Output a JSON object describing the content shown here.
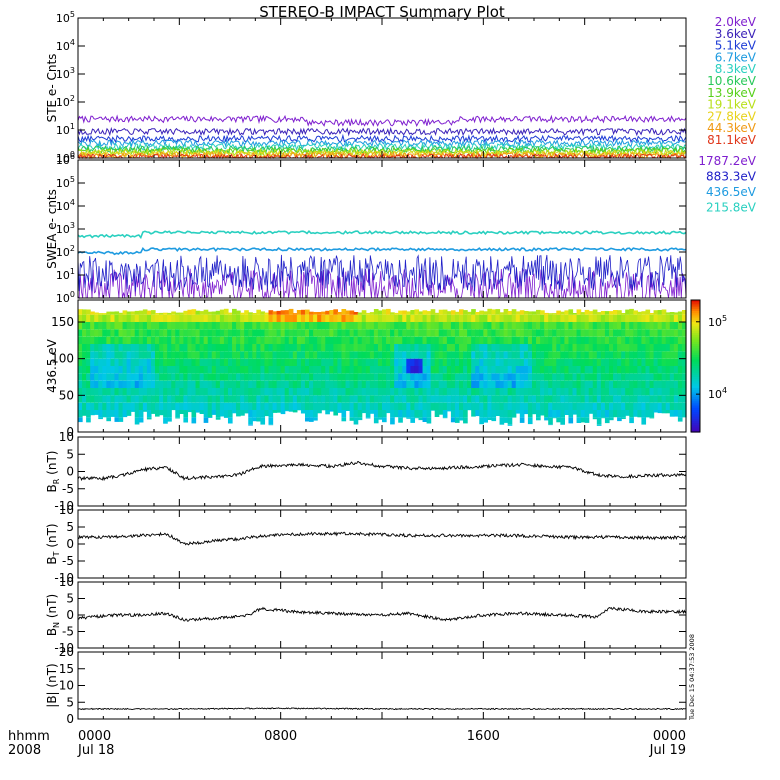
{
  "title": "STEREO-B IMPACT Summary Plot",
  "footer": {
    "time_label": "hhmm",
    "year_label": "2008",
    "ticks": [
      "0000",
      "0800",
      "1600",
      "0000"
    ],
    "start_date": "Jul 18",
    "end_date": "Jul 19"
  },
  "stamp": "Tue Dec 15 04:37:53 2008",
  "colors": {
    "frame": "#000000",
    "background": "#ffffff"
  },
  "chart_data": [
    {
      "type": "line",
      "panel": "ste",
      "ylabel": "STE e- Cnts",
      "yscale": "log",
      "ylim": [
        1,
        100000
      ],
      "y_ticks": [
        1,
        10,
        100,
        1000,
        10000,
        100000
      ],
      "y_tick_labels": [
        "10^0",
        "10^1",
        "10^2",
        "10^3",
        "10^4",
        "10^5"
      ],
      "x_ticks": [
        "0000",
        "0800",
        "1600",
        "0000"
      ],
      "x_range_hours": [
        0,
        24
      ],
      "series": [
        {
          "name": "2.0keV",
          "color": "#7f1fcf",
          "level": 25
        },
        {
          "name": "3.6keV",
          "color": "#3b22b8",
          "level": 9
        },
        {
          "name": "5.1keV",
          "color": "#1e3cd6",
          "level": 5
        },
        {
          "name": "6.7keV",
          "color": "#1e9be0",
          "level": 3.5
        },
        {
          "name": "8.3keV",
          "color": "#2ad0c0",
          "level": 2.6
        },
        {
          "name": "10.6keV",
          "color": "#28c85a",
          "level": 2.1
        },
        {
          "name": "13.9keV",
          "color": "#58d01c",
          "level": 1.8
        },
        {
          "name": "19.1keV",
          "color": "#b8e01a",
          "level": 1.6
        },
        {
          "name": "27.8keV",
          "color": "#e8d21a",
          "level": 1.4
        },
        {
          "name": "44.3keV",
          "color": "#f09a14",
          "level": 1.25
        },
        {
          "name": "81.1keV",
          "color": "#e0361a",
          "level": 1.1
        }
      ]
    },
    {
      "type": "line",
      "panel": "swea",
      "ylabel": "SWEA e- cnts",
      "yscale": "log",
      "ylim": [
        1,
        1000000
      ],
      "y_ticks": [
        1,
        10,
        100,
        1000,
        10000,
        100000,
        1000000
      ],
      "y_tick_labels": [
        "10^0",
        "10^1",
        "10^2",
        "10^3",
        "10^4",
        "10^5",
        "10^6"
      ],
      "x_ticks": [
        "0000",
        "0800",
        "1600",
        "0000"
      ],
      "x_range_hours": [
        0,
        24
      ],
      "series": [
        {
          "name": "1787.2eV",
          "color": "#7f1fcf",
          "level": 3
        },
        {
          "name": "883.3eV",
          "color": "#2020c8",
          "level": 12
        },
        {
          "name": "436.5eV",
          "color": "#1e9be0",
          "level": 130
        },
        {
          "name": "215.8eV",
          "color": "#2ad0c0",
          "level": 700
        }
      ]
    },
    {
      "type": "heatmap",
      "panel": "pad",
      "ylabel": "436.5 eV",
      "ylim": [
        0,
        180
      ],
      "y_ticks": [
        0,
        50,
        100,
        150
      ],
      "x_ticks": [
        "0000",
        "0800",
        "1600",
        "0000"
      ],
      "x_range_hours": [
        0,
        24
      ],
      "colorbar": {
        "scale": "log",
        "range": [
          3000,
          200000
        ],
        "tick_labels": [
          "10^4",
          "10^5"
        ]
      }
    },
    {
      "type": "line",
      "panel": "br",
      "ylabel": "B_R (nT)",
      "ylim": [
        -10,
        10
      ],
      "y_ticks": [
        -10,
        -5,
        0,
        5,
        10
      ],
      "x_ticks": [
        "0000",
        "0800",
        "1600",
        "0000"
      ],
      "x_range_hours": [
        0,
        24
      ],
      "series": [
        {
          "x": [
            0,
            1,
            1.8,
            2.5,
            3.5,
            4.2,
            5.5,
            6.3,
            7.2,
            8.5,
            10,
            11,
            12,
            13,
            14,
            15,
            16,
            17.5,
            18.5,
            19.5,
            20.5,
            21.5,
            23,
            24
          ],
          "y": [
            -2,
            -2,
            -1,
            0.5,
            1.2,
            -2,
            -1.5,
            -1,
            1.5,
            2,
            1.5,
            2.5,
            1.5,
            1,
            0.8,
            1.2,
            1.5,
            2,
            1.5,
            1.2,
            -1,
            -1.5,
            -1,
            -1
          ]
        }
      ]
    },
    {
      "type": "line",
      "panel": "bt",
      "ylabel": "B_T (nT)",
      "ylim": [
        -10,
        10
      ],
      "y_ticks": [
        -10,
        -5,
        0,
        5,
        10
      ],
      "x_ticks": [
        "0000",
        "0800",
        "1600",
        "0000"
      ],
      "x_range_hours": [
        0,
        24
      ],
      "series": [
        {
          "x": [
            0,
            1,
            2.5,
            3.5,
            4.2,
            5.5,
            6.3,
            7.5,
            9,
            11,
            13,
            15,
            17,
            18.5,
            19.5,
            21,
            23,
            24
          ],
          "y": [
            2,
            2,
            2.5,
            3,
            0,
            1,
            1.5,
            2.5,
            3,
            3,
            2.5,
            2.5,
            2.5,
            2.2,
            2,
            2,
            1.8,
            2
          ]
        }
      ]
    },
    {
      "type": "line",
      "panel": "bn",
      "ylabel": "B_N (nT)",
      "ylim": [
        -10,
        10
      ],
      "y_ticks": [
        -10,
        -5,
        0,
        5,
        10
      ],
      "x_ticks": [
        "0000",
        "0800",
        "1600",
        "0000"
      ],
      "x_range_hours": [
        0,
        24
      ],
      "series": [
        {
          "x": [
            0,
            1.5,
            2.5,
            3.5,
            4.2,
            5.5,
            6.8,
            7.2,
            8.5,
            10,
            12,
            13,
            14.5,
            16,
            17.5,
            19,
            20.5,
            21,
            22.5,
            24
          ],
          "y": [
            -1,
            0,
            0,
            0.5,
            -1.5,
            -1,
            0,
            2,
            1,
            0.5,
            0,
            0.5,
            -1.5,
            0,
            0.5,
            0,
            -0.5,
            2,
            1,
            1
          ]
        }
      ]
    },
    {
      "type": "line",
      "panel": "bmag",
      "ylabel": "|B| (nT)",
      "ylim": [
        0,
        20
      ],
      "y_ticks": [
        0,
        5,
        10,
        15,
        20
      ],
      "x_ticks": [
        "0000",
        "0800",
        "1600",
        "0000"
      ],
      "x_range_hours": [
        0,
        24
      ],
      "series": [
        {
          "x": [
            0,
            4,
            8,
            12,
            16,
            20,
            24
          ],
          "y": [
            3,
            3,
            3.2,
            3,
            3,
            3,
            3
          ]
        }
      ]
    }
  ]
}
